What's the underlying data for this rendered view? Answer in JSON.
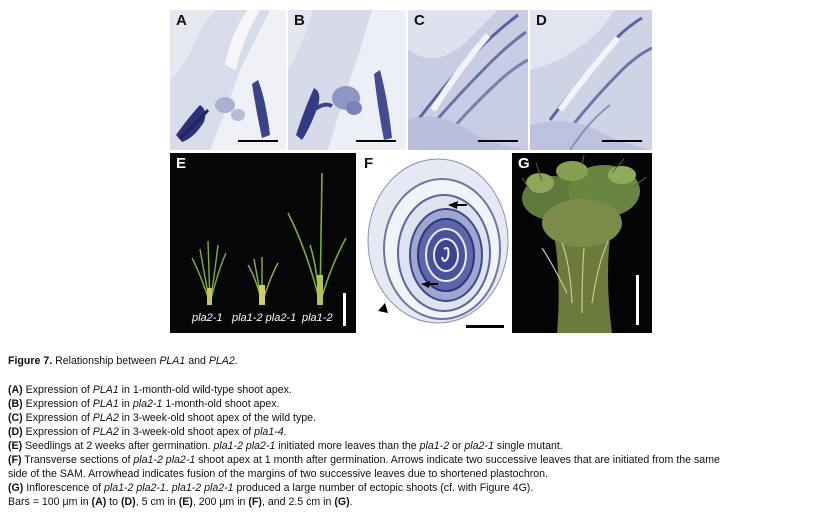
{
  "panels": {
    "a": {
      "label": "A"
    },
    "b": {
      "label": "B"
    },
    "c": {
      "label": "C"
    },
    "d": {
      "label": "D"
    },
    "e": {
      "label": "E",
      "seedlings": [
        "pla2-1",
        "pla1-2 pla2-1",
        "pla1-2"
      ]
    },
    "f": {
      "label": "F"
    },
    "g": {
      "label": "G"
    }
  },
  "caption": {
    "title_bold": "Figure 7.",
    "title_rest_1": " Relationship between ",
    "title_it_1": "PLA1",
    "title_rest_2": " and ",
    "title_it_2": "PLA2",
    "title_rest_3": ".",
    "a_key": "(A)",
    "a_pre": " Expression of ",
    "a_it": "PLA1",
    "a_post": " in 1-month-old wild-type shoot apex.",
    "b_key": "(B)",
    "b_pre": " Expression of ",
    "b_it1": "PLA1",
    "b_mid": " in ",
    "b_it2": "pla2-1",
    "b_post": " 1-month-old shoot apex.",
    "c_key": "(C)",
    "c_pre": " Expression of ",
    "c_it": "PLA2",
    "c_post": " in 3-week-old shoot apex of the wild type.",
    "d_key": "(D)",
    "d_pre": " Expression of ",
    "d_it1": "PLA2",
    "d_mid": " in 3-week-old shoot apex of ",
    "d_it2": "pla1-4",
    "d_post": ".",
    "e_key": "(E)",
    "e_pre": " Seedlings at 2 weeks after germination. ",
    "e_it1": "pla1-2 pla2-1",
    "e_mid1": " initiated more leaves than the ",
    "e_it2": "pla1-2",
    "e_mid2": " or ",
    "e_it3": "pla2-1",
    "e_post": " single mutant.",
    "f_key": "(F)",
    "f_pre": " Transverse sections of ",
    "f_it": "pla1-2 pla2-1",
    "f_post": " shoot apex at 1 month after germination. Arrows indicate two successive leaves that are initiated from the same",
    "f_line2": "side of the SAM. Arrowhead indicates fusion of the margins of two successive leaves due to shortened plastochron.",
    "g_key": "(G)",
    "g_pre": " Inflorescence of ",
    "g_it1": "pla1-2 pla2-1",
    "g_mid": ". ",
    "g_it2": "pla1-2 pla2-1",
    "g_post": " produced a large number of ectopic shoots (cf. with Figure 4G).",
    "bars_1": "Bars = 100 μm in ",
    "bars_a": "(A)",
    "bars_2": " to ",
    "bars_d": "(D)",
    "bars_3": ", 5 cm in ",
    "bars_e": "(E)",
    "bars_4": ", 200 μm in ",
    "bars_f": "(F)",
    "bars_5": ", and 2.5 cm in ",
    "bars_g": "(G)",
    "bars_6": "."
  }
}
